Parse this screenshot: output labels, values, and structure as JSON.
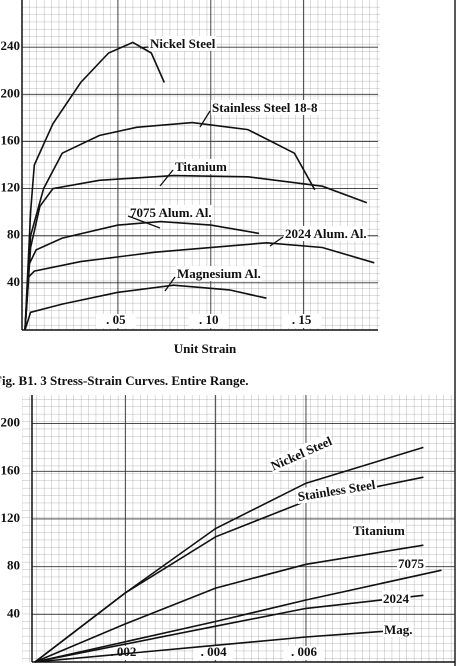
{
  "chart_data": [
    {
      "type": "line",
      "xlabel": "Unit Strain",
      "caption": "Fig. B1. 3 Stress-Strain Curves. Entire Range.",
      "xlim": [
        0,
        0.19
      ],
      "ylim": [
        0,
        280
      ],
      "xticks": [
        {
          "value": 0.05,
          "label": ". 05"
        },
        {
          "value": 0.1,
          "label": ". 10"
        },
        {
          "value": 0.15,
          "label": ". 15"
        }
      ],
      "yticks": [
        40,
        80,
        120,
        160,
        200,
        240
      ],
      "grid": true,
      "series": [
        {
          "name": "Nickel Steel",
          "color": "#111",
          "x": [
            0,
            0.003,
            0.005,
            0.015,
            0.03,
            0.045,
            0.058,
            0.068,
            0.075
          ],
          "values": [
            0,
            100,
            140,
            175,
            210,
            235,
            244,
            235,
            210
          ]
        },
        {
          "name": "Stainless Steel 18-8",
          "color": "#111",
          "x": [
            0,
            0.003,
            0.01,
            0.02,
            0.04,
            0.06,
            0.09,
            0.12,
            0.145,
            0.156
          ],
          "values": [
            0,
            80,
            120,
            150,
            165,
            172,
            176,
            170,
            150,
            119
          ]
        },
        {
          "name": "Titanium",
          "color": "#111",
          "x": [
            0,
            0.003,
            0.008,
            0.015,
            0.04,
            0.08,
            0.12,
            0.16,
            0.184
          ],
          "values": [
            0,
            70,
            105,
            120,
            127,
            131,
            130,
            122,
            108
          ]
        },
        {
          "name": "7075 Alum. Al.",
          "color": "#111",
          "x": [
            0,
            0.002,
            0.006,
            0.02,
            0.05,
            0.073,
            0.1,
            0.126
          ],
          "values": [
            0,
            55,
            68,
            78,
            89,
            92,
            89,
            82
          ]
        },
        {
          "name": "2024 Alum. Al.",
          "color": "#111",
          "x": [
            0,
            0.002,
            0.005,
            0.03,
            0.07,
            0.13,
            0.16,
            0.188
          ],
          "values": [
            0,
            45,
            50,
            58,
            66,
            74,
            70,
            57
          ]
        },
        {
          "name": "Magnesium Al.",
          "color": "#111",
          "x": [
            0,
            0.003,
            0.02,
            0.05,
            0.08,
            0.11,
            0.13
          ],
          "values": [
            0,
            15,
            22,
            32,
            38,
            34,
            27
          ]
        }
      ]
    },
    {
      "type": "line",
      "xlim": [
        0,
        0.0093
      ],
      "ylim": [
        0,
        224
      ],
      "xticks": [
        {
          "value": 0.002,
          "label": ". 002"
        },
        {
          "value": 0.004,
          "label": ". 004"
        },
        {
          "value": 0.006,
          "label": ". 006"
        }
      ],
      "yticks": [
        40,
        80,
        120,
        160,
        200
      ],
      "grid": true,
      "series": [
        {
          "name": "Nickel Steel",
          "color": "#111",
          "x": [
            0,
            0.002,
            0.004,
            0.006,
            0.0086
          ],
          "values": [
            0,
            58,
            112,
            150,
            180
          ]
        },
        {
          "name": "Stainless Steel",
          "color": "#111",
          "x": [
            0,
            0.002,
            0.004,
            0.006,
            0.0086
          ],
          "values": [
            0,
            58,
            105,
            135,
            155
          ]
        },
        {
          "name": "Titanium",
          "color": "#111",
          "x": [
            0,
            0.002,
            0.004,
            0.006,
            0.0086
          ],
          "values": [
            0,
            32,
            62,
            82,
            98
          ]
        },
        {
          "name": "7075",
          "color": "#111",
          "x": [
            0,
            0.004,
            0.006,
            0.009
          ],
          "values": [
            0,
            34,
            52,
            77
          ]
        },
        {
          "name": "2024",
          "color": "#111",
          "x": [
            0,
            0.004,
            0.006,
            0.0086
          ],
          "values": [
            0,
            30,
            45,
            56
          ]
        },
        {
          "name": "Mag.",
          "color": "#111",
          "x": [
            0,
            0.004,
            0.006,
            0.0082
          ],
          "values": [
            0,
            14,
            21,
            27
          ]
        }
      ]
    }
  ]
}
